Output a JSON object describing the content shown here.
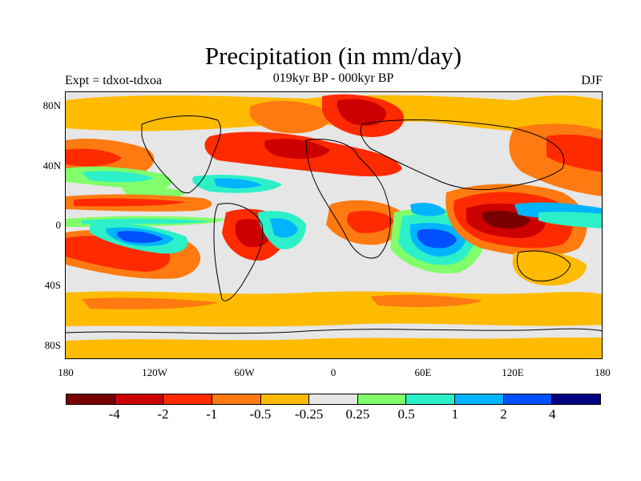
{
  "title": "Precipitation (in mm/day)",
  "subtitle": "019kyr BP - 000kyr BP",
  "experiment_label": "Expt = tdxot-tdxoa",
  "season_label": "DJF",
  "y_ticks": [
    "80N",
    "40N",
    "0",
    "40S",
    "80S"
  ],
  "x_ticks": [
    "180",
    "120W",
    "60W",
    "0",
    "60E",
    "120E",
    "180"
  ],
  "colorbar": {
    "colors": [
      "#7a0000",
      "#cc0000",
      "#ff2a00",
      "#ff7a10",
      "#ffbb00",
      "#e6e6e6",
      "#80ff6a",
      "#2cf0c8",
      "#00b4ff",
      "#0050ff",
      "#000080"
    ],
    "labels": [
      "-4",
      "-2",
      "-1",
      "-0.5",
      "-0.25",
      "0.25",
      "0.5",
      "1",
      "2",
      "4"
    ]
  }
}
